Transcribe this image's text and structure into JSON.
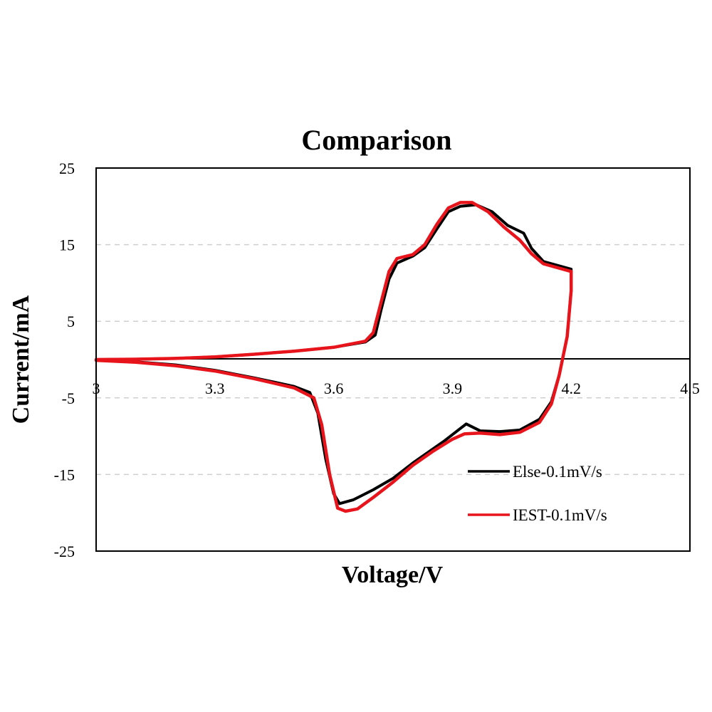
{
  "chart_data": {
    "type": "line",
    "title": "Comparison",
    "xlabel": "Voltage/V",
    "ylabel": "Current/mA",
    "xlim": [
      3,
      4.5
    ],
    "ylim": [
      -25,
      25
    ],
    "xticks": [
      3,
      3.3,
      3.6,
      3.9,
      4.2,
      4.5
    ],
    "xtick_labels": [
      "3",
      "3.3",
      "3.6",
      "3.9",
      "4.2",
      "4.5"
    ],
    "yticks": [
      25,
      15,
      5,
      -5,
      -15,
      -25
    ],
    "ytick_labels": [
      "25",
      "15",
      "5",
      "-5",
      "-15",
      "-25"
    ],
    "grid": "horizontal-dashed",
    "legend_position": "bottom-right",
    "series": [
      {
        "name": "Else-0.1mV/s",
        "color": "#000000",
        "points": [
          [
            3.0,
            0.0
          ],
          [
            3.1,
            0.05
          ],
          [
            3.2,
            0.15
          ],
          [
            3.3,
            0.35
          ],
          [
            3.4,
            0.7
          ],
          [
            3.5,
            1.1
          ],
          [
            3.6,
            1.6
          ],
          [
            3.68,
            2.3
          ],
          [
            3.705,
            3.2
          ],
          [
            3.72,
            6.5
          ],
          [
            3.74,
            10.5
          ],
          [
            3.76,
            12.6
          ],
          [
            3.8,
            13.5
          ],
          [
            3.83,
            14.6
          ],
          [
            3.86,
            17.0
          ],
          [
            3.89,
            19.3
          ],
          [
            3.92,
            20.0
          ],
          [
            3.96,
            20.2
          ],
          [
            4.0,
            19.3
          ],
          [
            4.04,
            17.5
          ],
          [
            4.08,
            16.5
          ],
          [
            4.1,
            14.5
          ],
          [
            4.13,
            12.8
          ],
          [
            4.2,
            11.8
          ],
          [
            4.2,
            9.0
          ],
          [
            4.19,
            3.0
          ],
          [
            4.17,
            -2.0
          ],
          [
            4.15,
            -5.5
          ],
          [
            4.12,
            -7.8
          ],
          [
            4.07,
            -9.2
          ],
          [
            4.02,
            -9.4
          ],
          [
            3.97,
            -9.3
          ],
          [
            3.935,
            -8.4
          ],
          [
            3.92,
            -9.0
          ],
          [
            3.88,
            -10.6
          ],
          [
            3.8,
            -13.5
          ],
          [
            3.75,
            -15.5
          ],
          [
            3.7,
            -17.0
          ],
          [
            3.65,
            -18.3
          ],
          [
            3.615,
            -18.8
          ],
          [
            3.6,
            -17.5
          ],
          [
            3.58,
            -13.0
          ],
          [
            3.56,
            -7.0
          ],
          [
            3.54,
            -4.3
          ],
          [
            3.5,
            -3.5
          ],
          [
            3.4,
            -2.4
          ],
          [
            3.3,
            -1.4
          ],
          [
            3.2,
            -0.7
          ],
          [
            3.1,
            -0.3
          ],
          [
            3.0,
            -0.1
          ]
        ]
      },
      {
        "name": "IEST-0.1mV/s",
        "color": "#e8141c",
        "points": [
          [
            3.0,
            0.0
          ],
          [
            3.1,
            0.05
          ],
          [
            3.2,
            0.15
          ],
          [
            3.3,
            0.35
          ],
          [
            3.4,
            0.7
          ],
          [
            3.5,
            1.1
          ],
          [
            3.6,
            1.6
          ],
          [
            3.68,
            2.4
          ],
          [
            3.7,
            3.5
          ],
          [
            3.72,
            7.5
          ],
          [
            3.74,
            11.5
          ],
          [
            3.76,
            13.2
          ],
          [
            3.8,
            13.7
          ],
          [
            3.83,
            15.0
          ],
          [
            3.86,
            17.6
          ],
          [
            3.89,
            19.8
          ],
          [
            3.92,
            20.5
          ],
          [
            3.95,
            20.5
          ],
          [
            3.99,
            19.3
          ],
          [
            4.03,
            17.3
          ],
          [
            4.07,
            15.6
          ],
          [
            4.1,
            13.8
          ],
          [
            4.13,
            12.5
          ],
          [
            4.2,
            11.5
          ],
          [
            4.2,
            9.0
          ],
          [
            4.19,
            3.0
          ],
          [
            4.17,
            -2.0
          ],
          [
            4.15,
            -5.8
          ],
          [
            4.12,
            -8.2
          ],
          [
            4.07,
            -9.5
          ],
          [
            4.02,
            -9.8
          ],
          [
            3.97,
            -9.6
          ],
          [
            3.93,
            -9.7
          ],
          [
            3.9,
            -10.4
          ],
          [
            3.85,
            -12.0
          ],
          [
            3.8,
            -13.8
          ],
          [
            3.75,
            -16.0
          ],
          [
            3.7,
            -18.0
          ],
          [
            3.66,
            -19.5
          ],
          [
            3.63,
            -19.8
          ],
          [
            3.61,
            -19.4
          ],
          [
            3.59,
            -15.0
          ],
          [
            3.57,
            -8.5
          ],
          [
            3.55,
            -5.0
          ],
          [
            3.5,
            -3.7
          ],
          [
            3.4,
            -2.5
          ],
          [
            3.3,
            -1.5
          ],
          [
            3.2,
            -0.8
          ],
          [
            3.1,
            -0.35
          ],
          [
            3.0,
            -0.1
          ]
        ]
      }
    ]
  }
}
